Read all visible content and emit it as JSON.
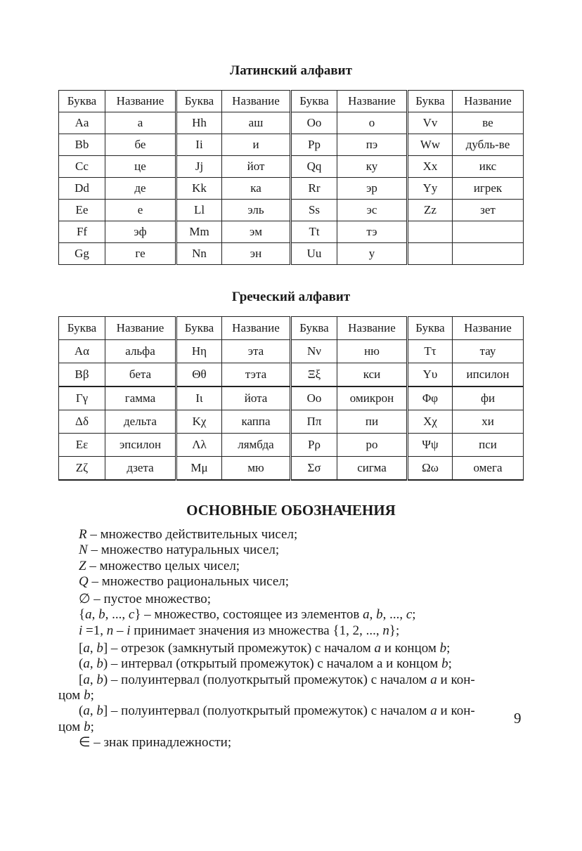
{
  "latin": {
    "title": "Латинский алфавит",
    "header": [
      "Буква",
      "Название",
      "Буква",
      "Название",
      "Буква",
      "Название",
      "Буква",
      "Название"
    ],
    "rows": [
      [
        "Aa",
        "а",
        "Hh",
        "аш",
        "Oo",
        "о",
        "Vv",
        "ве"
      ],
      [
        "Bb",
        "бе",
        "Ii",
        "и",
        "Pp",
        "пэ",
        "Ww",
        "дубль-ве"
      ],
      [
        "Cc",
        "це",
        "Jj",
        "йот",
        "Qq",
        "ку",
        "Xx",
        "икс"
      ],
      [
        "Dd",
        "де",
        "Kk",
        "ка",
        "Rr",
        "эр",
        "Yy",
        "игрек"
      ],
      [
        "Ee",
        "е",
        "Ll",
        "эль",
        "Ss",
        "эс",
        "Zz",
        "зет"
      ],
      [
        "Ff",
        "эф",
        "Mm",
        "эм",
        "Tt",
        "тэ",
        "",
        ""
      ],
      [
        "Gg",
        "ге",
        "Nn",
        "эн",
        "Uu",
        "у",
        "",
        ""
      ]
    ]
  },
  "greek": {
    "title": "Греческий алфавит",
    "header": [
      "Буква",
      "Название",
      "Буква",
      "Название",
      "Буква",
      "Название",
      "Буква",
      "Название"
    ],
    "rows": [
      [
        "Αα",
        "альфа",
        "Ηη",
        "эта",
        "Νν",
        "ню",
        "Ττ",
        "тау"
      ],
      [
        "Ββ",
        "бета",
        "Θθ",
        "тэта",
        "Ξξ",
        "кси",
        "Υυ",
        "ипсилон"
      ],
      [
        "Γγ",
        "гамма",
        "Ιι",
        "йота",
        "Οο",
        "омикрон",
        "Φφ",
        "фи"
      ],
      [
        "Δδ",
        "дельта",
        "Κχ",
        "каппа",
        "Ππ",
        "пи",
        "Χχ",
        "хи"
      ],
      [
        "Εε",
        "эпсилон",
        "Λλ",
        "лямбда",
        "Ρρ",
        "ро",
        "Ψψ",
        "пси"
      ],
      [
        "Ζζ",
        "дзета",
        "Μμ",
        "мю",
        "Σσ",
        "сигма",
        "Ωω",
        "омега"
      ]
    ]
  },
  "notations": {
    "heading": "ОСНОВНЫЕ ОБОЗНАЧЕНИЯ",
    "lines": [
      [
        [
          "R",
          1
        ],
        [
          " – множество действительных чисел;",
          0
        ]
      ],
      [
        [
          "N",
          1
        ],
        [
          " – множество натуральных чисел;",
          0
        ]
      ],
      [
        [
          "Z",
          1
        ],
        [
          " – множество целых чисел;",
          0
        ]
      ],
      [
        [
          "Q",
          1
        ],
        [
          " – множество рациональных чисел;",
          0
        ]
      ],
      [
        [
          "∅  – пустое множество;",
          0
        ]
      ],
      [
        [
          "{",
          0
        ],
        [
          "a",
          1
        ],
        [
          ", ",
          0
        ],
        [
          "b",
          1
        ],
        [
          ", ..., ",
          0
        ],
        [
          "c",
          1
        ],
        [
          "} – множество, состоящее из элементов ",
          0
        ],
        [
          "a",
          1
        ],
        [
          ", ",
          0
        ],
        [
          "b",
          1
        ],
        [
          ", ..., ",
          0
        ],
        [
          "c",
          1
        ],
        [
          ";",
          0
        ]
      ],
      [
        [
          "i",
          1
        ],
        [
          " =1, ",
          0
        ],
        [
          "n",
          1
        ],
        [
          " – ",
          0
        ],
        [
          "i",
          1
        ],
        [
          " принимает значения из множества {1, 2, ..., ",
          0
        ],
        [
          "n",
          1
        ],
        [
          "};",
          0
        ]
      ],
      [
        [
          "[",
          0
        ],
        [
          "a",
          1
        ],
        [
          ", ",
          0
        ],
        [
          "b",
          1
        ],
        [
          "] – отрезок (замкнутый промежуток) с началом ",
          0
        ],
        [
          "a",
          1
        ],
        [
          " и концом ",
          0
        ],
        [
          "b",
          1
        ],
        [
          ";",
          0
        ]
      ],
      [
        [
          "(",
          0
        ],
        [
          "a",
          1
        ],
        [
          ", ",
          0
        ],
        [
          "b",
          1
        ],
        [
          ") – интервал (открытый промежуток) с началом а и концом ",
          0
        ],
        [
          "b",
          1
        ],
        [
          ";",
          0
        ]
      ],
      [
        [
          "[",
          0
        ],
        [
          "a",
          1
        ],
        [
          ", ",
          0
        ],
        [
          "b",
          1
        ],
        [
          ") – полуинтервал (полуоткрытый промежуток) с началом ",
          0
        ],
        [
          "a",
          1
        ],
        [
          " и кон-",
          0
        ]
      ],
      [
        [
          "цом ",
          0
        ],
        [
          "b",
          1
        ],
        [
          ";",
          0
        ]
      ],
      [
        [
          "(",
          0
        ],
        [
          "a",
          1
        ],
        [
          ", ",
          0
        ],
        [
          "b",
          1
        ],
        [
          "] – полуинтервал (полуоткрытый промежуток) с началом ",
          0
        ],
        [
          "a",
          1
        ],
        [
          " и кон-",
          0
        ]
      ],
      [
        [
          "цом ",
          0
        ],
        [
          "b",
          1
        ],
        [
          ";",
          0
        ]
      ],
      [
        [
          "∈  – знак принадлежности;",
          0
        ]
      ]
    ]
  },
  "page_number": "9"
}
